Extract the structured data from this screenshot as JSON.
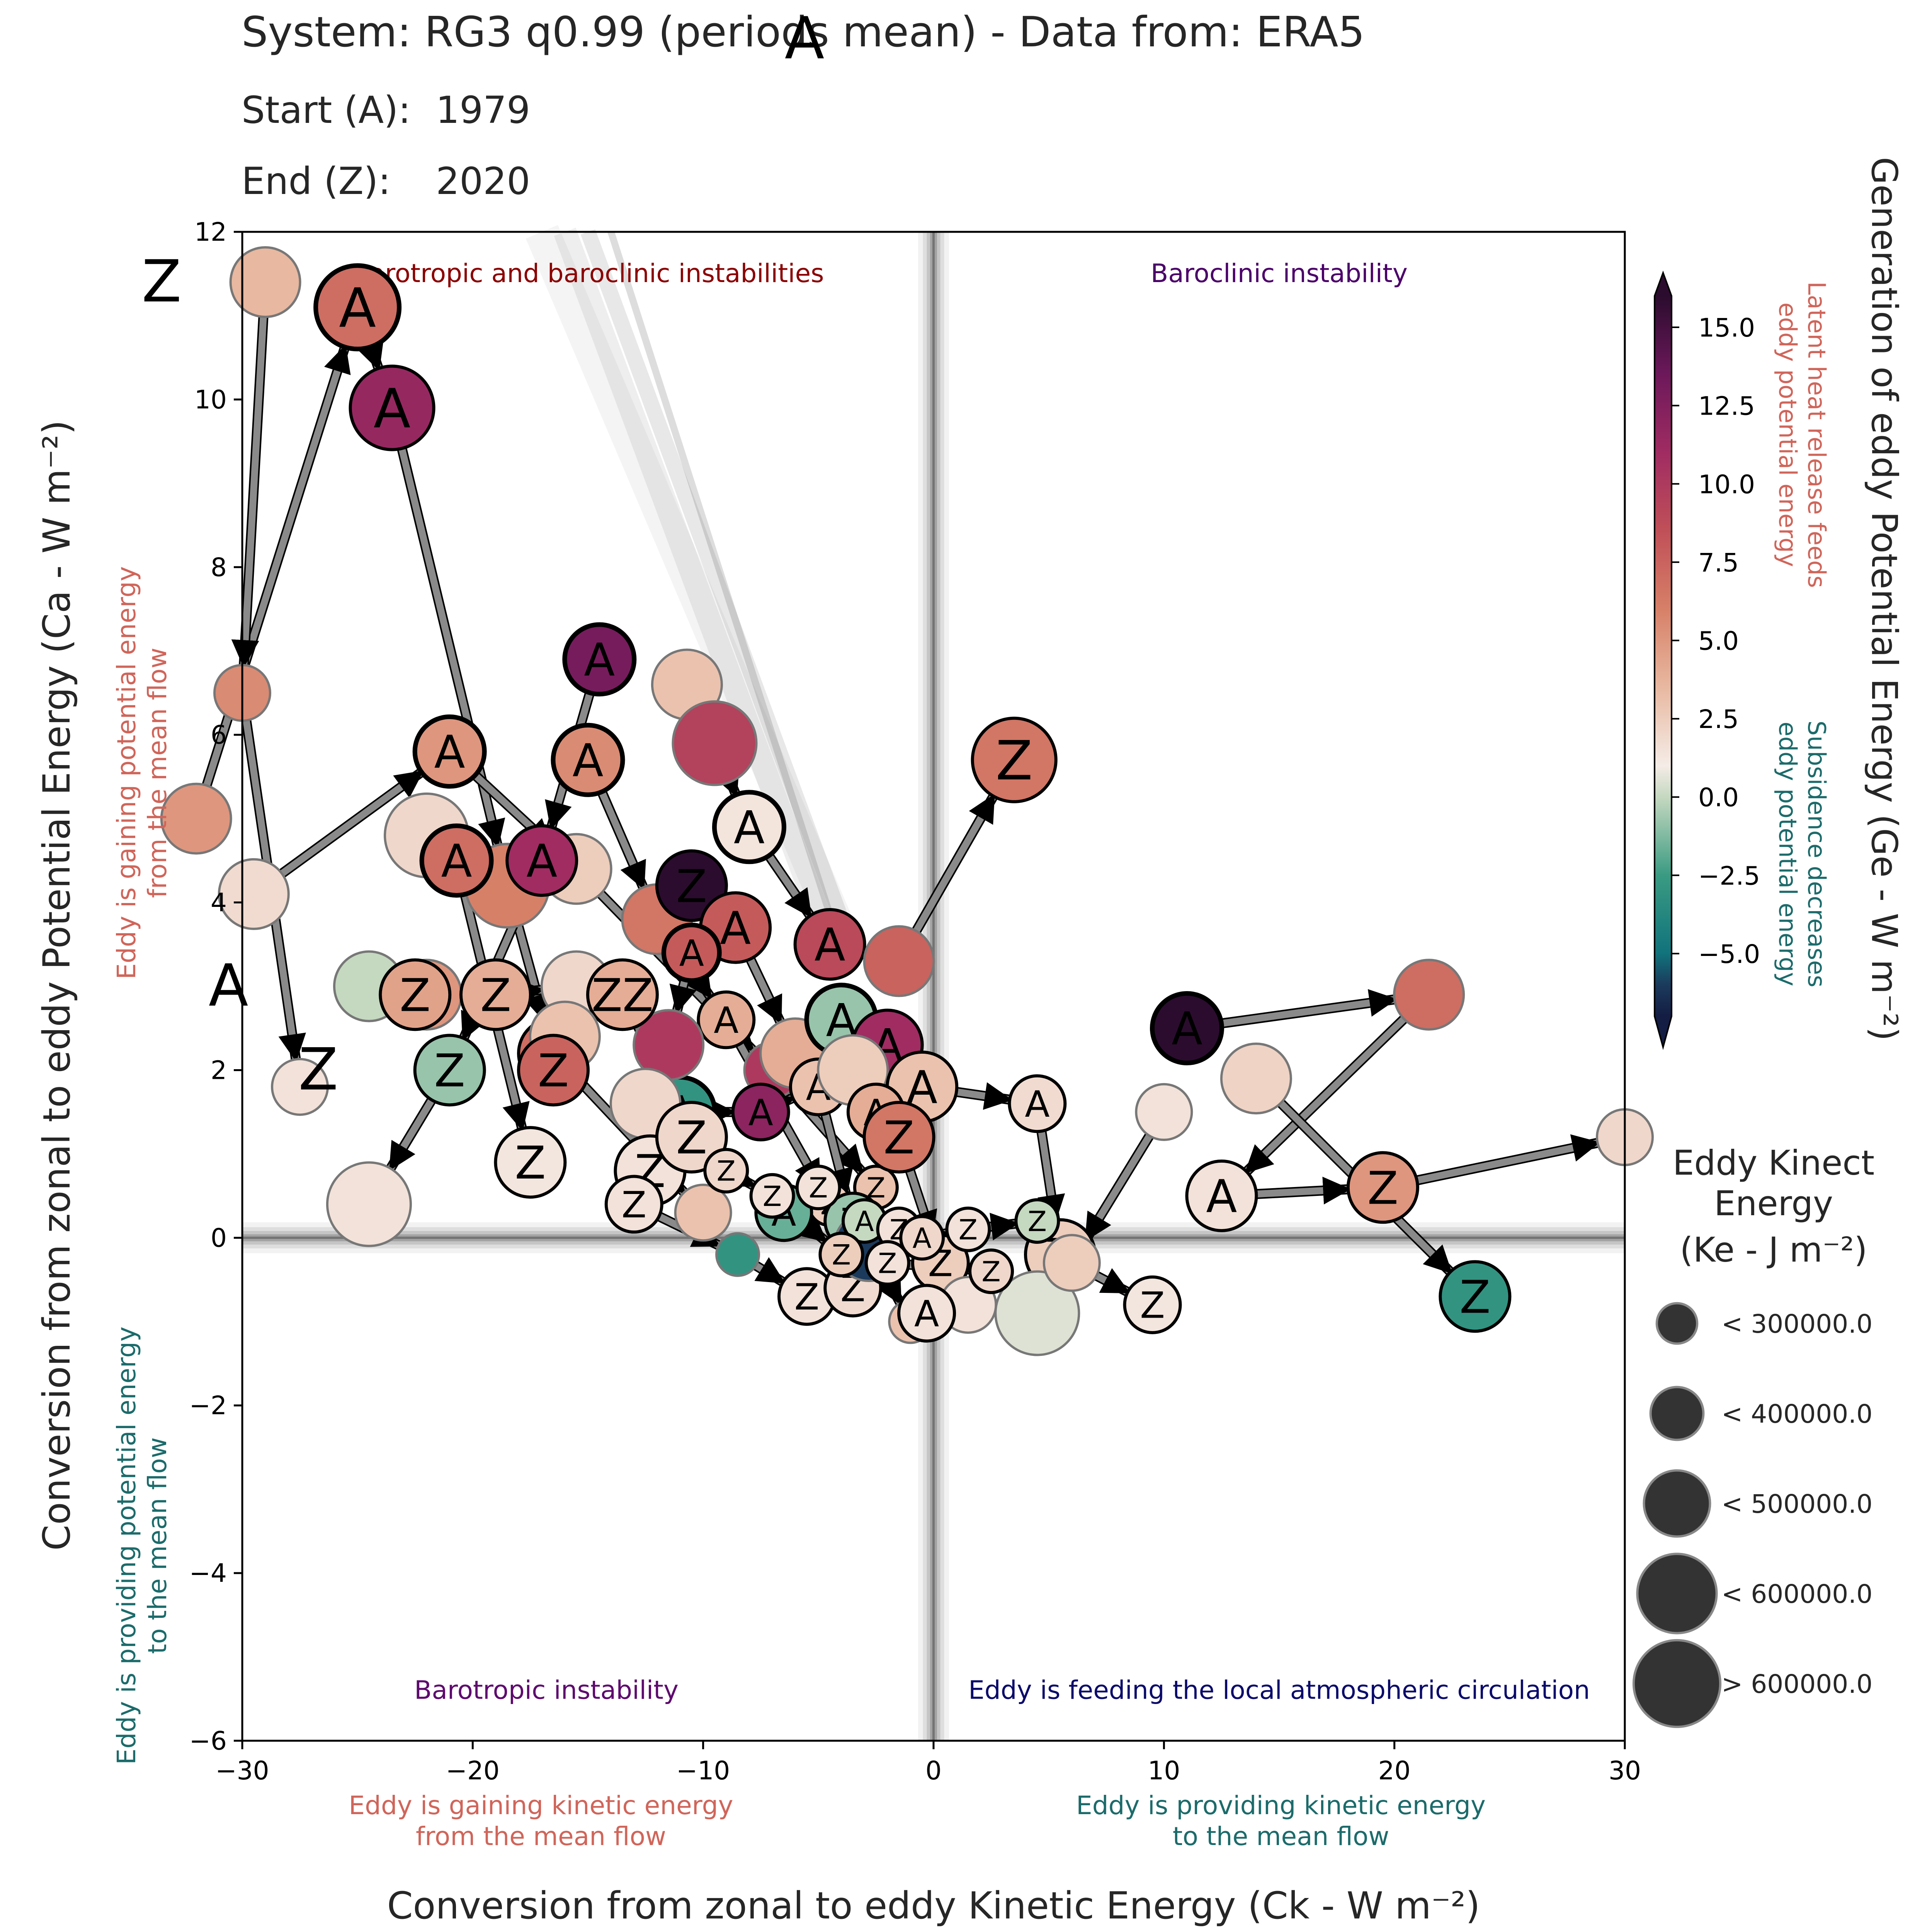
{
  "header": {
    "title": "System: RG3 q0.99 (periods mean) - Data from: ERA5",
    "start_label": "Start (A):",
    "start_value": "1979",
    "end_label": "End (Z):",
    "end_value": "2020"
  },
  "chart_data": {
    "type": "scatter",
    "xlabel": "Conversion from zonal to eddy Kinetic Energy (Ck -  W m⁻²)",
    "ylabel": "Conversion from zonal to eddy Potential Energy (Ca -  W m⁻²)",
    "xlim": [
      -30,
      30
    ],
    "ylim": [
      -6,
      12
    ],
    "x_ticks": [
      "−30",
      "−20",
      "−10",
      "0",
      "10",
      "20",
      "30"
    ],
    "y_ticks": [
      "−6",
      "−4",
      "−2",
      "0",
      "2",
      "4",
      "6",
      "8",
      "10",
      "12"
    ],
    "grid": false,
    "quadrant_labels": {
      "top_left": "Barotropic and baroclinic instabilities",
      "top_right": "Baroclinic instability",
      "bottom_left": "Barotropic instability",
      "bottom_right": "Eddy is feeding the local atmospheric circulation"
    },
    "axis_annotations": {
      "y_positive": [
        "Eddy is gaining potential energy",
        "from the mean flow"
      ],
      "y_negative": [
        "Eddy is providing potential energy",
        "to the mean flow"
      ],
      "x_negative": [
        "Eddy is gaining kinetic energy",
        "from the mean flow"
      ],
      "x_positive": [
        "Eddy is providing kinetic energy",
        "to the mean flow"
      ]
    },
    "colorbar": {
      "label": "Generation of eddy Potential Energy (Ge -  W m⁻²)",
      "range": [
        -7,
        16
      ],
      "tick_values": [
        -5,
        -2.5,
        0,
        2.5,
        5,
        7.5,
        10,
        12.5,
        15
      ],
      "tick_labels": [
        "−5.0",
        "−2.5",
        "0.0",
        "2.5",
        "5.0",
        "7.5",
        "10.0",
        "12.5",
        "15.0"
      ],
      "positive_note": [
        "Latent heat release feeds",
        "eddy potential energy"
      ],
      "negative_note": [
        "Subsidence decreases",
        "eddy potential energy"
      ],
      "positive_color": "#d0655a",
      "negative_color": "#1c6b6b"
    },
    "size_legend": {
      "title_lines": [
        "Eddy Kinect",
        "Energy",
        "(Ke -  J m⁻²)"
      ],
      "entries": [
        {
          "label": "< 300000.0",
          "level": 1
        },
        {
          "label": "< 400000.0",
          "level": 2
        },
        {
          "label": "< 500000.0",
          "level": 3
        },
        {
          "label": "< 600000.0",
          "level": 4
        },
        {
          "label": "> 600000.0",
          "level": 5
        }
      ]
    },
    "edge_labels": [
      {
        "text": "Z",
        "x": -33.5,
        "y": 11.4
      },
      {
        "text": "A",
        "x": -5.6,
        "y": 14.3
      },
      {
        "text": "A",
        "x": -30.6,
        "y": 3.0
      },
      {
        "text": "Z",
        "x": -26.7,
        "y": 2.0
      }
    ],
    "series": [
      {
        "points": [
          {
            "x": -32,
            "y": 5.0,
            "ge": 4,
            "ke": 3
          },
          {
            "x": -25,
            "y": 11.1,
            "ge": 6,
            "ke": 4,
            "label": "A",
            "start": true
          },
          {
            "x": -23.5,
            "y": 9.9,
            "ge": 10.5,
            "ke": 4,
            "label": "A"
          },
          {
            "x": -18.5,
            "y": 4.2,
            "ge": 5,
            "ke": 4
          },
          {
            "x": -16.5,
            "y": 2.2,
            "ge": 6,
            "ke": 3,
            "label": "Z"
          },
          {
            "x": -10,
            "y": 0.3,
            "ge": 2,
            "ke": 2
          }
        ]
      },
      {
        "points": [
          {
            "x": -29.5,
            "y": 4.1,
            "ge": 0.8,
            "ke": 3
          },
          {
            "x": -21,
            "y": 5.8,
            "ge": 4,
            "ke": 3,
            "label": "A",
            "start": true
          },
          {
            "x": -15.5,
            "y": 4.4,
            "ge": 1.5,
            "ke": 3
          },
          {
            "x": -7,
            "y": 2.0,
            "ge": 9,
            "ke": 2
          },
          {
            "x": -2.5,
            "y": 0.6,
            "ge": 2,
            "ke": 1,
            "label": "Z"
          }
        ]
      },
      {
        "points": [
          {
            "x": -22,
            "y": 4.8,
            "ge": 1,
            "ke": 4
          },
          {
            "x": -20.7,
            "y": 4.5,
            "ge": 6,
            "ke": 3,
            "label": "A",
            "start": true
          },
          {
            "x": -17.5,
            "y": 0.9,
            "ge": 0.3,
            "ke": 3,
            "label": "Z"
          }
        ]
      },
      {
        "points": [
          {
            "x": -29,
            "y": 11.4,
            "ge": 2.5,
            "ke": 3
          },
          {
            "x": -30,
            "y": 6.5,
            "ge": 4.5,
            "ke": 2
          },
          {
            "x": -27.5,
            "y": 1.8,
            "ge": 0.5,
            "ke": 2
          }
        ]
      },
      {
        "points": [
          {
            "x": -15,
            "y": 5.7,
            "ge": 4.5,
            "ke": 3,
            "label": "A",
            "start": true
          },
          {
            "x": -12,
            "y": 3.8,
            "ge": 5.5,
            "ke": 3
          },
          {
            "x": -9,
            "y": 2.6,
            "ge": 3,
            "ke": 2,
            "label": "A"
          },
          {
            "x": -4.5,
            "y": 0.4,
            "ge": 1.5,
            "ke": 1,
            "label": "Z"
          }
        ]
      },
      {
        "points": [
          {
            "x": -14.5,
            "y": 6.9,
            "ge": 12,
            "ke": 3,
            "label": "A",
            "start": true
          },
          {
            "x": -17,
            "y": 4.5,
            "ge": 10,
            "ke": 3,
            "label": "A"
          },
          {
            "x": -21,
            "y": 2.0,
            "ge": -1.5,
            "ke": 3,
            "label": "Z"
          },
          {
            "x": -24.5,
            "y": 0.4,
            "ge": 0.5,
            "ke": 4
          }
        ]
      },
      {
        "points": [
          {
            "x": -10.7,
            "y": 6.6,
            "ge": 2,
            "ke": 3
          },
          {
            "x": -9.5,
            "y": 5.9,
            "ge": 8.5,
            "ke": 4
          },
          {
            "x": -8,
            "y": 4.9,
            "ge": 0.4,
            "ke": 3,
            "label": "A",
            "start": true
          },
          {
            "x": -4.5,
            "y": 3.5,
            "ge": 8,
            "ke": 3,
            "label": "A"
          },
          {
            "x": -1.5,
            "y": 3.3,
            "ge": 6.5,
            "ke": 3
          },
          {
            "x": 3.5,
            "y": 5.7,
            "ge": 5.5,
            "ke": 4,
            "label": "Z"
          }
        ]
      },
      {
        "points": [
          {
            "x": -10.5,
            "y": 4.2,
            "ge": 16,
            "ke": 3,
            "label": "Z"
          },
          {
            "x": -8.6,
            "y": 3.7,
            "ge": 7,
            "ke": 3,
            "label": "A"
          },
          {
            "x": -6,
            "y": 2.2,
            "ge": 3,
            "ke": 3
          }
        ]
      },
      {
        "points": [
          {
            "x": -11,
            "y": 1.5,
            "ge": -3,
            "ke": 3,
            "label": "A",
            "start": true
          },
          {
            "x": -7.5,
            "y": 1.5,
            "ge": 11,
            "ke": 2,
            "label": "A"
          },
          {
            "x": -5,
            "y": 1.8,
            "ge": 2,
            "ke": 2,
            "label": "A"
          },
          {
            "x": -3.5,
            "y": 0.2,
            "ge": -1.5,
            "ke": 2,
            "label": "Z"
          }
        ]
      },
      {
        "points": [
          {
            "x": -10.5,
            "y": 3.4,
            "ge": 7,
            "ke": 2,
            "label": "A",
            "start": true
          },
          {
            "x": -11.5,
            "y": 2.3,
            "ge": 9,
            "ke": 3
          },
          {
            "x": -12.5,
            "y": 1.6,
            "ge": 1,
            "ke": 3
          },
          {
            "x": -12.3,
            "y": 0.8,
            "ge": 0.5,
            "ke": 3,
            "label": "Z"
          }
        ]
      },
      {
        "points": [
          {
            "x": -22,
            "y": 2.9,
            "ge": 4,
            "ke": 3
          },
          {
            "x": -19,
            "y": 2.9,
            "ge": 3,
            "ke": 3,
            "label": "Z"
          },
          {
            "x": -15.5,
            "y": 3.0,
            "ge": 1,
            "ke": 3
          },
          {
            "x": -13.5,
            "y": 2.9,
            "ge": 3,
            "ke": 3,
            "label": "ZZ"
          },
          {
            "x": -10.5,
            "y": 1.2,
            "ge": 1,
            "ke": 3,
            "label": "Z"
          }
        ]
      },
      {
        "points": [
          {
            "x": -24.5,
            "y": 3.0,
            "ge": -1,
            "ke": 3
          },
          {
            "x": -22.5,
            "y": 2.9,
            "ge": 3.5,
            "ke": 3,
            "label": "Z"
          }
        ]
      },
      {
        "points": [
          {
            "x": -16,
            "y": 2.4,
            "ge": 2,
            "ke": 3
          },
          {
            "x": -16.5,
            "y": 2.0,
            "ge": 6.5,
            "ke": 3,
            "label": "Z"
          }
        ]
      },
      {
        "points": [
          {
            "x": -4,
            "y": 2.6,
            "ge": -1.5,
            "ke": 3,
            "label": "A",
            "start": true
          },
          {
            "x": -2,
            "y": 2.3,
            "ge": 10,
            "ke": 3,
            "label": "A"
          },
          {
            "x": -3.5,
            "y": 2.0,
            "ge": 1.5,
            "ke": 3
          },
          {
            "x": -0.5,
            "y": 1.8,
            "ge": 2,
            "ke": 3,
            "label": "A"
          },
          {
            "x": 4.5,
            "y": 1.6,
            "ge": 0.8,
            "ke": 2,
            "label": "A"
          },
          {
            "x": 5.5,
            "y": -0.2,
            "ge": 1.5,
            "ke": 3,
            "label": "Z"
          },
          {
            "x": 4.5,
            "y": -0.9,
            "ge": -0.5,
            "ke": 4
          }
        ]
      },
      {
        "points": [
          {
            "x": -2.5,
            "y": 1.5,
            "ge": 3,
            "ke": 2,
            "label": "A"
          },
          {
            "x": -1.5,
            "y": 1.2,
            "ge": 5.5,
            "ke": 3,
            "label": "Z"
          },
          {
            "x": 0.3,
            "y": -0.3,
            "ge": 1.5,
            "ke": 2,
            "label": "Z"
          },
          {
            "x": 1.5,
            "y": -0.8,
            "ge": 0.5,
            "ke": 2
          }
        ]
      },
      {
        "points": [
          {
            "x": 11,
            "y": 2.5,
            "ge": 16,
            "ke": 3,
            "label": "A",
            "start": true
          },
          {
            "x": 21.5,
            "y": 2.9,
            "ge": 6,
            "ke": 3
          },
          {
            "x": 12.5,
            "y": 0.5,
            "ge": 0.5,
            "ke": 3,
            "label": "A"
          },
          {
            "x": 19.5,
            "y": 0.6,
            "ge": 4,
            "ke": 3,
            "label": "Z"
          },
          {
            "x": 30,
            "y": 1.2,
            "ge": 1,
            "ke": 2
          }
        ]
      },
      {
        "points": [
          {
            "x": 14,
            "y": 1.9,
            "ge": 1.2,
            "ke": 3
          },
          {
            "x": 23.5,
            "y": -0.7,
            "ge": -3,
            "ke": 3,
            "label": "Z"
          }
        ]
      },
      {
        "points": [
          {
            "x": 10,
            "y": 1.5,
            "ge": 0.5,
            "ke": 2
          },
          {
            "x": 6,
            "y": -0.3,
            "ge": 1.5,
            "ke": 2
          },
          {
            "x": 9.5,
            "y": -0.8,
            "ge": 0.3,
            "ke": 2,
            "label": "Z"
          }
        ]
      },
      {
        "points": [
          {
            "x": -13,
            "y": 0.4,
            "ge": 0.5,
            "ke": 2,
            "label": "Z"
          },
          {
            "x": -8.5,
            "y": -0.2,
            "ge": -3,
            "ke": 1
          },
          {
            "x": -5.5,
            "y": -0.7,
            "ge": 0.5,
            "ke": 2,
            "label": "Z"
          },
          {
            "x": -3.5,
            "y": -0.6,
            "ge": 0.8,
            "ke": 2,
            "label": "Z"
          },
          {
            "x": -2.8,
            "y": -0.1,
            "ge": -6,
            "ke": 3
          },
          {
            "x": -1,
            "y": -1.0,
            "ge": 2,
            "ke": 1
          },
          {
            "x": -0.3,
            "y": -0.9,
            "ge": 0.5,
            "ke": 2,
            "label": "A"
          }
        ]
      },
      {
        "points": [
          {
            "x": -6.5,
            "y": 0.3,
            "ge": -2,
            "ke": 2,
            "label": "A"
          },
          {
            "x": -5,
            "y": 0.6,
            "ge": 0.5,
            "ke": 1,
            "label": "Z"
          },
          {
            "x": -3,
            "y": 0.2,
            "ge": -1,
            "ke": 1,
            "label": "A"
          },
          {
            "x": -1.5,
            "y": 0.1,
            "ge": 0.5,
            "ke": 1,
            "label": "Z"
          },
          {
            "x": -0.5,
            "y": 0.0,
            "ge": 1,
            "ke": 1,
            "label": "A"
          },
          {
            "x": 1.5,
            "y": 0.1,
            "ge": 0.5,
            "ke": 1,
            "label": "Z"
          },
          {
            "x": 4.5,
            "y": 0.2,
            "ge": -1,
            "ke": 1,
            "label": "Z"
          }
        ]
      },
      {
        "points": [
          {
            "x": -9,
            "y": 0.8,
            "ge": 1,
            "ke": 1,
            "label": "Z"
          },
          {
            "x": -7,
            "y": 0.5,
            "ge": 0.5,
            "ke": 1,
            "label": "Z"
          },
          {
            "x": -4,
            "y": -0.2,
            "ge": 1.5,
            "ke": 1,
            "label": "Z"
          },
          {
            "x": -2,
            "y": -0.3,
            "ge": 0.5,
            "ke": 1,
            "label": "Z"
          },
          {
            "x": 2.5,
            "y": -0.4,
            "ge": 1,
            "ke": 1,
            "label": "Z"
          }
        ]
      }
    ]
  }
}
